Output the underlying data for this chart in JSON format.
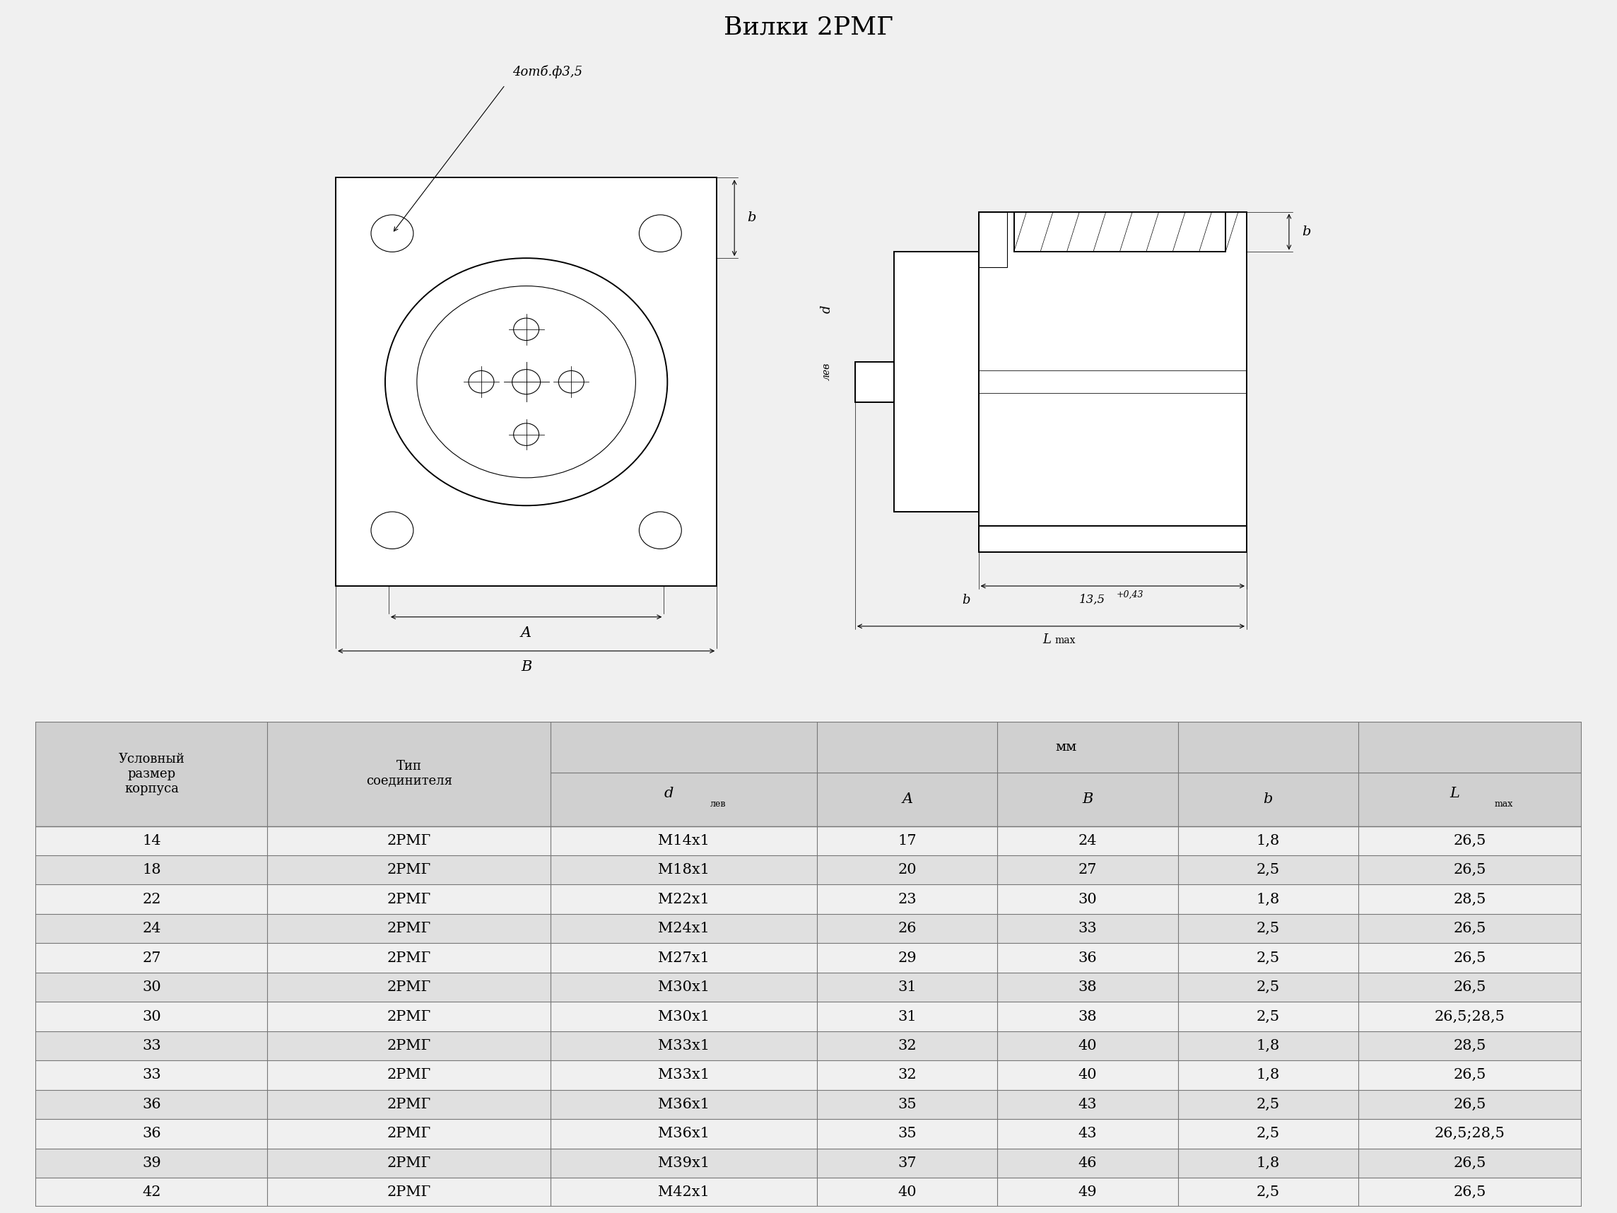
{
  "title": "Вилки 2РМГ",
  "title_bg": "#c8c8c8",
  "page_bg": "#f0f0f0",
  "drawing_bg": "#ffffff",
  "table_header_bg": "#d0d0d0",
  "table_row_bg_even": "#f0f0f0",
  "table_row_bg_odd": "#e0e0e0",
  "table_border": "#777777",
  "annotation": "4отб.ф3,5",
  "dim_135": "13,5",
  "dim_135_sup": "+0,43",
  "rows": [
    [
      "14",
      "2РМГ",
      "М14х1",
      "17",
      "24",
      "1,8",
      "26,5"
    ],
    [
      "18",
      "2РМГ",
      "М18х1",
      "20",
      "27",
      "2,5",
      "26,5"
    ],
    [
      "22",
      "2РМГ",
      "М22х1",
      "23",
      "30",
      "1,8",
      "28,5"
    ],
    [
      "24",
      "2РМГ",
      "М24х1",
      "26",
      "33",
      "2,5",
      "26,5"
    ],
    [
      "27",
      "2РМГ",
      "М27х1",
      "29",
      "36",
      "2,5",
      "26,5"
    ],
    [
      "30",
      "2РМГ",
      "М30х1",
      "31",
      "38",
      "2,5",
      "26,5"
    ],
    [
      "30",
      "2РМГ",
      "М30х1",
      "31",
      "38",
      "2,5",
      "26,5;28,5"
    ],
    [
      "33",
      "2РМГ",
      "М33х1",
      "32",
      "40",
      "1,8",
      "28,5"
    ],
    [
      "33",
      "2РМГ",
      "М33х1",
      "32",
      "40",
      "1,8",
      "26,5"
    ],
    [
      "36",
      "2РМГ",
      "М36х1",
      "35",
      "43",
      "2,5",
      "26,5"
    ],
    [
      "36",
      "2РМГ",
      "М36х1",
      "35",
      "43",
      "2,5",
      "26,5;28,5"
    ],
    [
      "39",
      "2РМГ",
      "М39х1",
      "37",
      "46",
      "1,8",
      "26,5"
    ],
    [
      "42",
      "2РМГ",
      "М42х1",
      "40",
      "49",
      "2,5",
      "26,5"
    ]
  ]
}
